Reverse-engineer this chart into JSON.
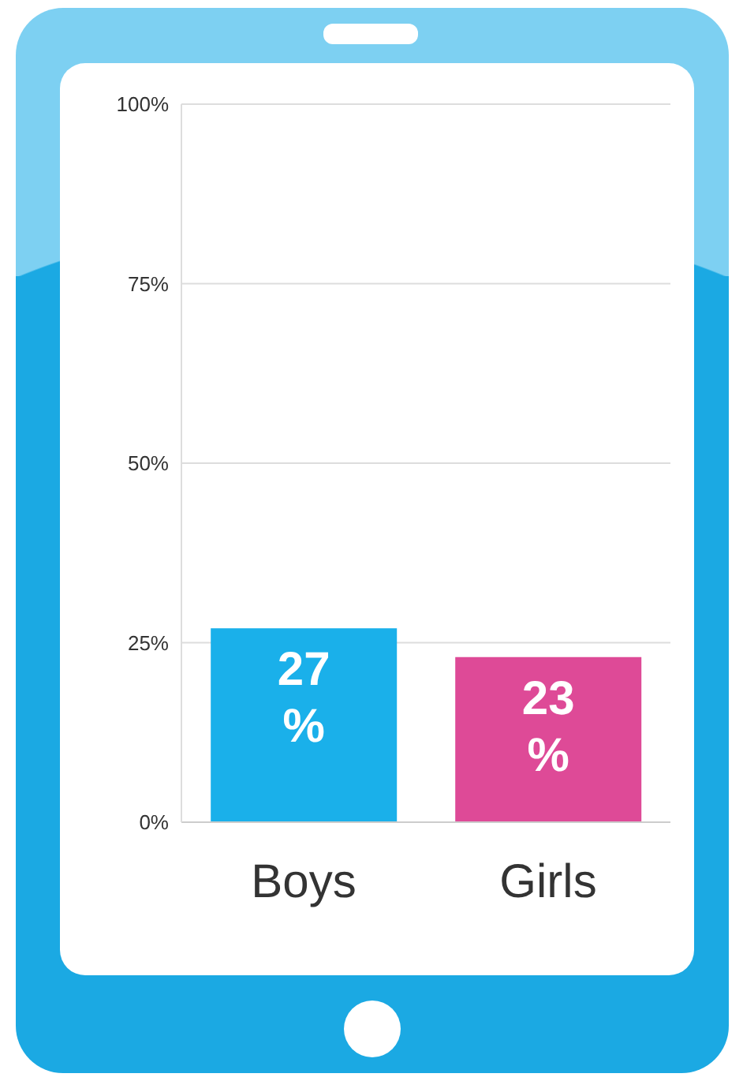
{
  "chart_data": {
    "type": "bar",
    "categories": [
      "Boys",
      "Girls"
    ],
    "values": [
      27,
      23
    ],
    "colors": [
      "#1ab0ea",
      "#de4a97"
    ],
    "value_labels": [
      "27%",
      "23%"
    ],
    "ylim": [
      0,
      100
    ],
    "yticks": [
      {
        "value": 0,
        "label": "0%"
      },
      {
        "value": 25,
        "label": "25%"
      },
      {
        "value": 50,
        "label": "50%"
      },
      {
        "value": 75,
        "label": "75%"
      },
      {
        "value": 100,
        "label": "100%"
      }
    ],
    "grid": "y",
    "legend": false
  }
}
